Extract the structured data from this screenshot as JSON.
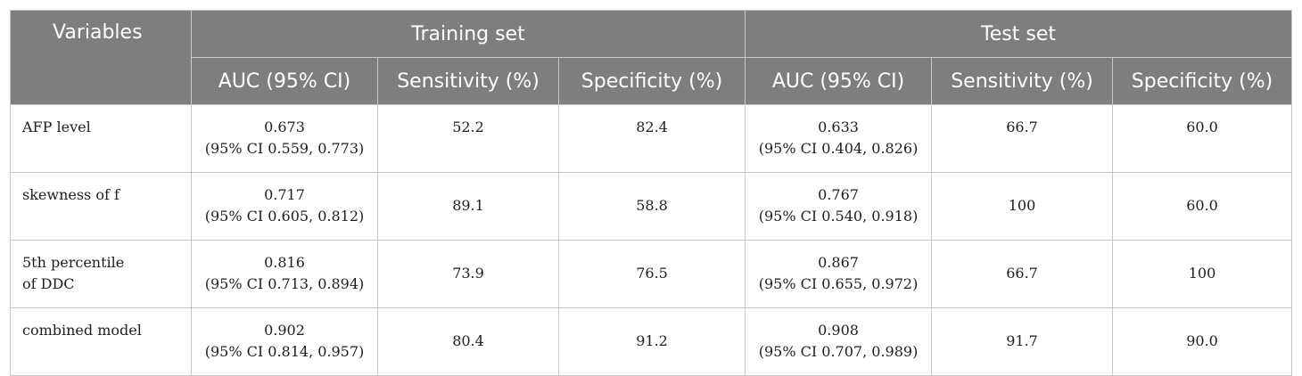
{
  "header": {
    "variables": "Variables",
    "training_set": "Training set",
    "test_set": "Test set",
    "auc": "AUC (95% CI)",
    "sensitivity": "Sensitivity (%)",
    "specificity": "Specificity (%)"
  },
  "rows": [
    {
      "variable_line1": "AFP level",
      "variable_line2": "",
      "train_auc": "0.673",
      "train_ci": "(95% CI 0.559, 0.773)",
      "train_sens": "52.2",
      "train_spec": "82.4",
      "test_auc": "0.633",
      "test_ci": "(95% CI 0.404, 0.826)",
      "test_sens": "66.7",
      "test_spec": "60.0"
    },
    {
      "variable_line1": "skewness of f",
      "variable_line2": "",
      "train_auc": "0.717",
      "train_ci": "(95% CI 0.605, 0.812)",
      "train_sens": "89.1",
      "train_spec": "58.8",
      "test_auc": "0.767",
      "test_ci": "(95% CI 0.540, 0.918)",
      "test_sens": "100",
      "test_spec": "60.0"
    },
    {
      "variable_line1": "5th percentile",
      "variable_line2": "of DDC",
      "train_auc": "0.816",
      "train_ci": "(95% CI 0.713, 0.894)",
      "train_sens": "73.9",
      "train_spec": "76.5",
      "test_auc": "0.867",
      "test_ci": "(95% CI 0.655, 0.972)",
      "test_sens": "66.7",
      "test_spec": "100"
    },
    {
      "variable_line1": "combined model",
      "variable_line2": "",
      "train_auc": "0.902",
      "train_ci": "(95% CI 0.814, 0.957)",
      "train_sens": "80.4",
      "train_spec": "91.2",
      "test_auc": "0.908",
      "test_ci": "(95% CI 0.707, 0.989)",
      "test_sens": "91.7",
      "test_spec": "90.0"
    }
  ]
}
